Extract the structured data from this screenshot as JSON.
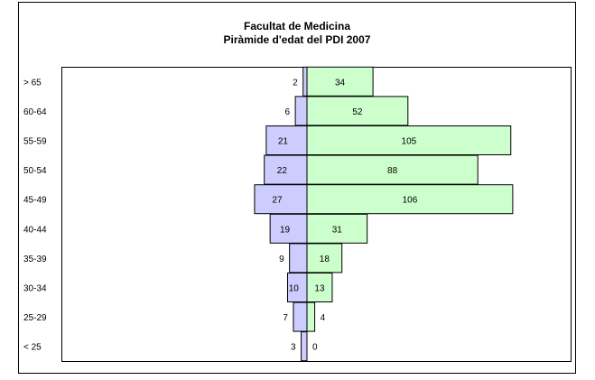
{
  "chart_data": {
    "type": "bar",
    "orientation": "horizontal",
    "layout": "population-pyramid",
    "title": "Facultat de Medicina",
    "subtitle": "Piràmide d'edat del PDI 2007",
    "categories": [
      "> 65",
      "60-64",
      "55-59",
      "50-54",
      "45-49",
      "40-44",
      "35-39",
      "30-34",
      "25-29",
      "< 25"
    ],
    "series": [
      {
        "side": "left",
        "color": "#ccccff",
        "values": [
          2,
          6,
          21,
          22,
          27,
          19,
          9,
          10,
          7,
          3
        ]
      },
      {
        "side": "right",
        "color": "#ccffcc",
        "values": [
          34,
          52,
          105,
          88,
          106,
          31,
          18,
          13,
          4,
          0
        ]
      }
    ],
    "legend": "none",
    "grid": false
  }
}
